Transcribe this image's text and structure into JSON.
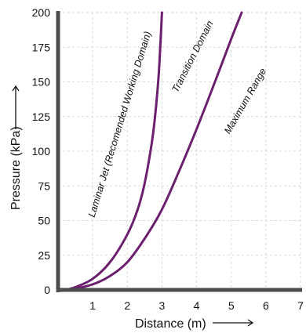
{
  "chart_data": {
    "type": "line",
    "xlabel": "Distance (m)",
    "ylabel": "Pressure (kPa)",
    "xlim": [
      0,
      7
    ],
    "ylim": [
      0,
      200
    ],
    "x_ticks": [
      1,
      2,
      3,
      4,
      5,
      6,
      7
    ],
    "y_ticks": [
      0,
      25,
      50,
      75,
      100,
      125,
      150,
      175,
      200
    ],
    "grid": true,
    "line_color": "#6b1f6e",
    "series": [
      {
        "name": "",
        "points": [
          [
            0.2,
            0
          ],
          [
            0.5,
            2
          ],
          [
            1.0,
            8
          ],
          [
            1.5,
            20
          ],
          [
            2.0,
            40
          ],
          [
            2.3,
            58
          ],
          [
            2.5,
            77
          ],
          [
            2.7,
            105
          ],
          [
            2.8,
            125
          ],
          [
            2.9,
            153
          ],
          [
            2.95,
            175
          ],
          [
            3.0,
            200
          ]
        ]
      },
      {
        "name": "",
        "points": [
          [
            0.2,
            0
          ],
          [
            0.5,
            1
          ],
          [
            1.0,
            4
          ],
          [
            1.5,
            10
          ],
          [
            2.0,
            20
          ],
          [
            2.5,
            37
          ],
          [
            3.0,
            58
          ],
          [
            3.5,
            86
          ],
          [
            4.0,
            116
          ],
          [
            4.5,
            148
          ],
          [
            5.0,
            181
          ],
          [
            5.3,
            200
          ]
        ]
      }
    ],
    "annotations": [
      "Laminar Jet (Recomended Working Domain)",
      "Transition Domain",
      "Maximum Range"
    ]
  }
}
